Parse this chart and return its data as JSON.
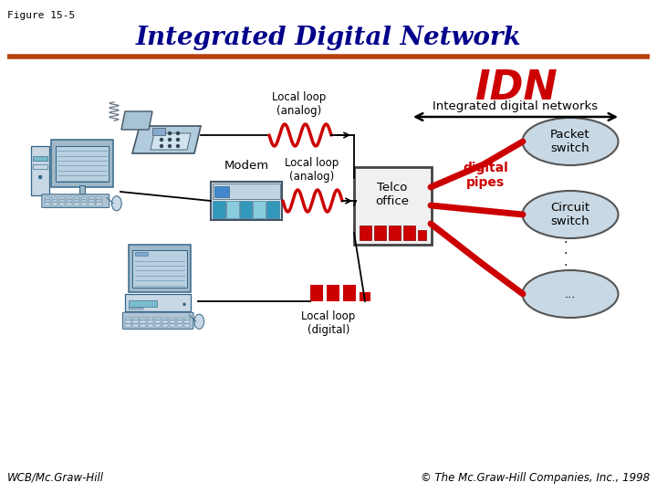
{
  "title": "Integrated Digital Network",
  "figure_label": "Figure 15-5",
  "footer_left": "WCB/Mc.Graw-Hill",
  "footer_right": "© The Mc.Graw-Hill Companies, Inc., 1998",
  "title_color": "#00008B",
  "title_fontsize": 20,
  "header_line_color": "#B84010",
  "idn_text": "IDN",
  "idn_color": "#CC0000",
  "idn_sub": "Integrated digital networks",
  "digital_pipes_color": "#CC0000",
  "background": "#FFFFFF",
  "ellipse_color": "#C8D8E4",
  "ellipse_edge": "#555555",
  "red_color": "#CC0000",
  "dark_color": "#333333",
  "phone_body": "#B8D4E0",
  "computer_body": "#7799BB",
  "computer_screen": "#A8CCE0",
  "modem_body": "#CCDDEE",
  "telco_body": "#E8E8E8",
  "arrow_color": "#111111"
}
